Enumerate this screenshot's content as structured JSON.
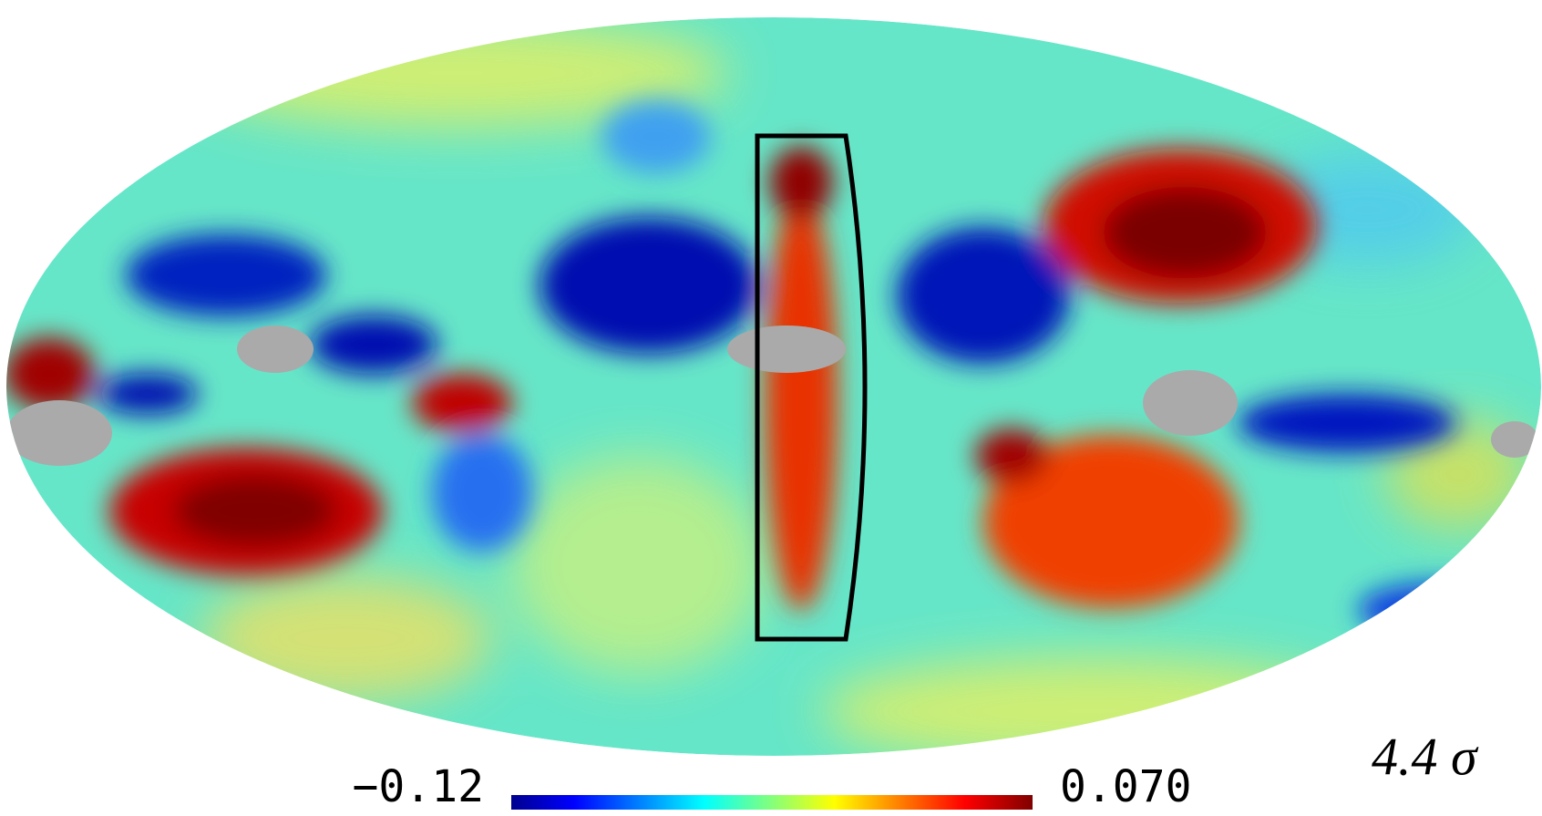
{
  "map": {
    "annotation": "4.4 σ",
    "colorbar": {
      "ticks": [
        {
          "value": -0.12,
          "label": "−0.12"
        },
        {
          "value": 0.07,
          "label": "0.070"
        }
      ]
    }
  }
}
